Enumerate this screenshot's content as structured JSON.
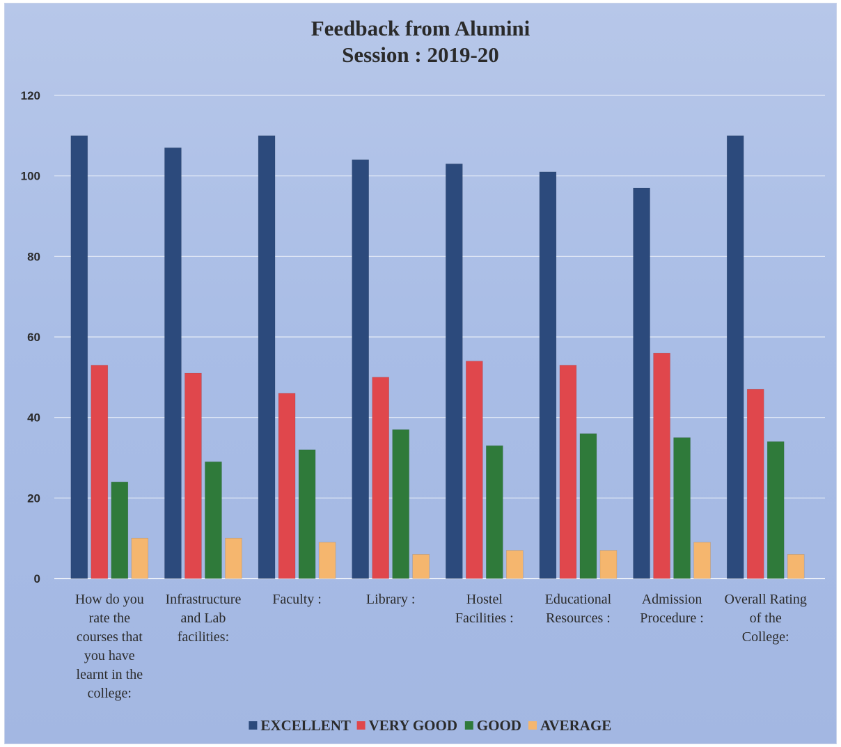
{
  "chart_data": {
    "type": "bar",
    "title_lines": [
      "Feedback from Alumini",
      "Session : 2019-20"
    ],
    "xlabel": "",
    "ylabel": "",
    "ylim": [
      0,
      120
    ],
    "yticks": [
      0,
      20,
      40,
      60,
      80,
      100,
      120
    ],
    "grid": true,
    "legend_position": "bottom",
    "categories": [
      [
        "How do you",
        "rate the",
        "courses that",
        "you have",
        "learnt in the",
        "college:"
      ],
      [
        "Infrastructure",
        "and Lab",
        "facilities:"
      ],
      [
        "Faculty :"
      ],
      [
        "Library  :"
      ],
      [
        "Hostel",
        "Facilities :"
      ],
      [
        "Educational",
        "Resources :"
      ],
      [
        "Admission",
        "Procedure :"
      ],
      [
        "Overall Rating",
        "of the",
        "College:"
      ]
    ],
    "series": [
      {
        "name": "EXCELLENT",
        "color": "#2c4a7c",
        "values": [
          110,
          107,
          110,
          104,
          103,
          101,
          97,
          110
        ]
      },
      {
        "name": "VERY GOOD",
        "color": "#e0474c",
        "values": [
          53,
          51,
          46,
          50,
          54,
          53,
          56,
          47
        ]
      },
      {
        "name": "GOOD",
        "color": "#2f7a3a",
        "values": [
          24,
          29,
          32,
          37,
          33,
          36,
          35,
          34
        ]
      },
      {
        "name": "AVERAGE",
        "color": "#f5b66e",
        "values": [
          10,
          10,
          9,
          6,
          7,
          7,
          9,
          6
        ]
      }
    ]
  }
}
